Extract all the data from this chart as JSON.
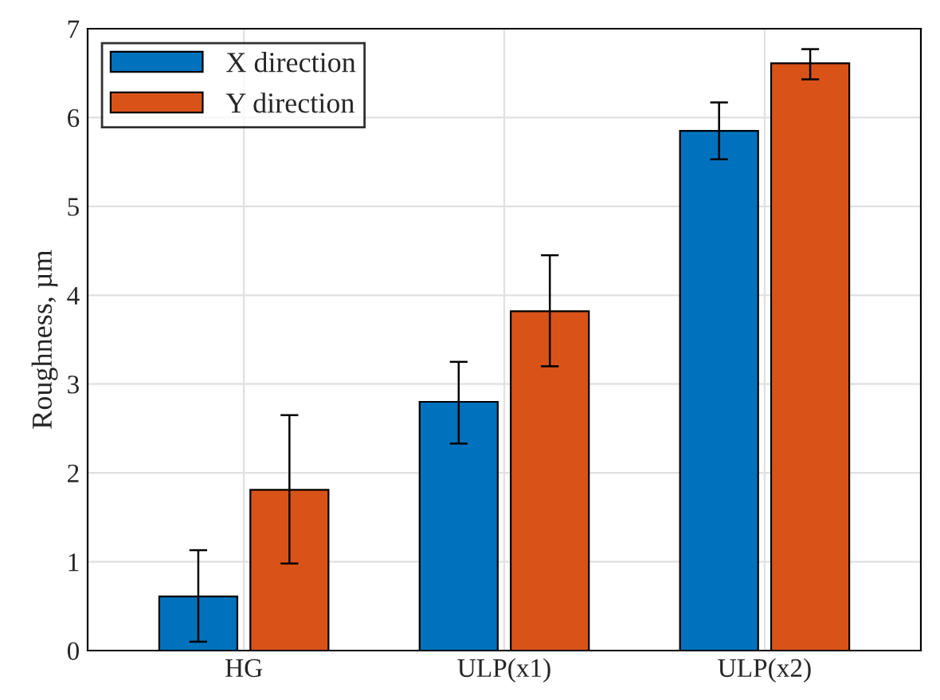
{
  "chart_data": {
    "type": "bar",
    "ylabel": "Roughness, µm",
    "categories": [
      "HG",
      "ULP(x1)",
      "ULP(x2)"
    ],
    "series": [
      {
        "name": "X direction",
        "color": "#0072bd",
        "values": [
          0.61,
          2.8,
          5.85
        ],
        "errors": [
          [
            0.1,
            1.13
          ],
          [
            2.33,
            3.25
          ],
          [
            5.53,
            6.17
          ]
        ]
      },
      {
        "name": "Y direction",
        "color": "#d95319",
        "values": [
          1.81,
          3.82,
          6.61
        ],
        "errors": [
          [
            0.98,
            2.65
          ],
          [
            3.2,
            4.45
          ],
          [
            6.43,
            6.77
          ]
        ]
      }
    ],
    "ylim": [
      0,
      7
    ],
    "yticks": [
      0,
      1,
      2,
      3,
      4,
      5,
      6,
      7
    ],
    "grid": true,
    "legend": "top left"
  }
}
